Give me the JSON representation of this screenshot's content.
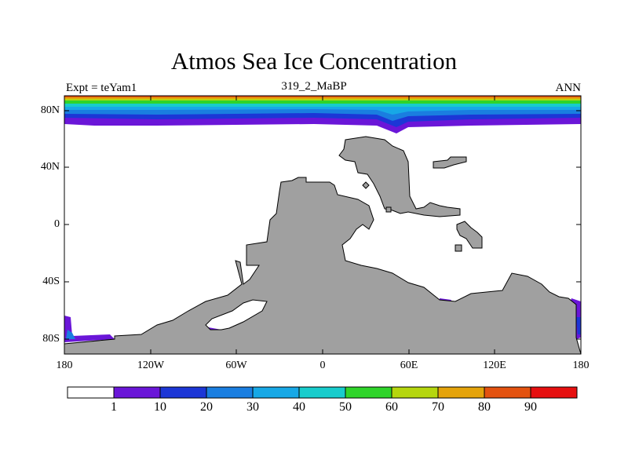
{
  "title": "Atmos Sea Ice Concentration",
  "subtitle_left": "Expt = teYam1",
  "subtitle_center": "319_2_MaBP",
  "subtitle_right": "ANN",
  "y_ticks": [
    "80N",
    "40N",
    "0",
    "40S",
    "80S"
  ],
  "x_ticks": [
    "180",
    "120W",
    "60W",
    "0",
    "60E",
    "120E",
    "180"
  ],
  "colorbar": {
    "labels": [
      "1",
      "10",
      "20",
      "30",
      "40",
      "50",
      "60",
      "70",
      "80",
      "90"
    ],
    "colors": [
      "#ffffff",
      "#6a16d8",
      "#1c36d6",
      "#1a7ee0",
      "#17a8e6",
      "#17cccc",
      "#2fd42a",
      "#b5d60e",
      "#e4a30a",
      "#e3520f",
      "#e60f0f"
    ]
  },
  "colors": {
    "land": "#a0a0a0",
    "coast": "#000000"
  }
}
